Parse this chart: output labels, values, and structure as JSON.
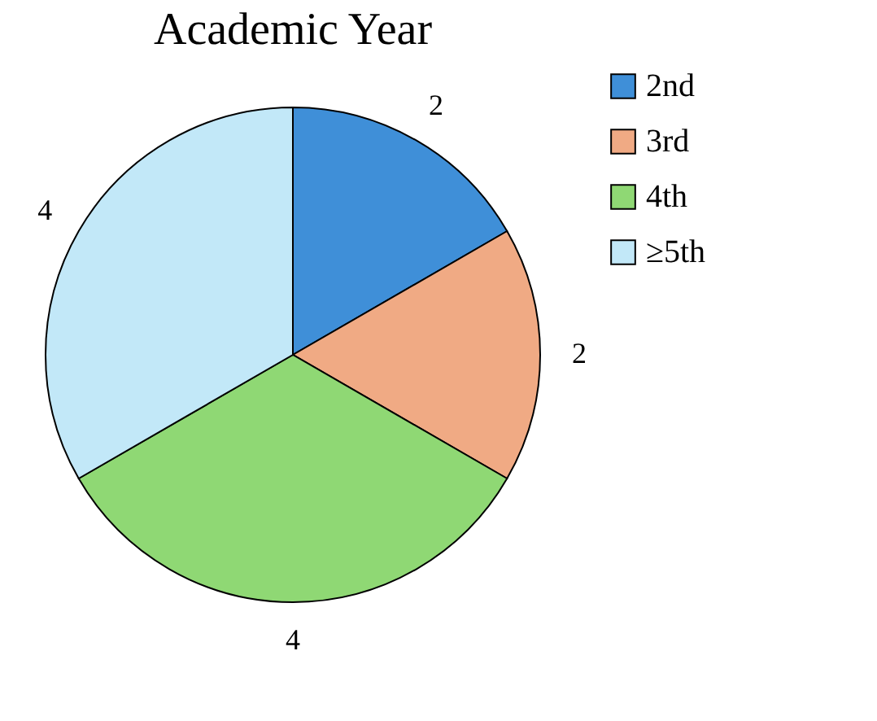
{
  "chart_data": {
    "type": "pie",
    "title": "Academic Year",
    "categories": [
      "2nd",
      "3rd",
      "4th",
      "≥5th"
    ],
    "values": [
      2,
      2,
      4,
      4
    ],
    "colors": [
      "#3f8fd8",
      "#f0aa84",
      "#8fd874",
      "#c2e8f8"
    ],
    "data_labels": true,
    "legend": "right"
  }
}
